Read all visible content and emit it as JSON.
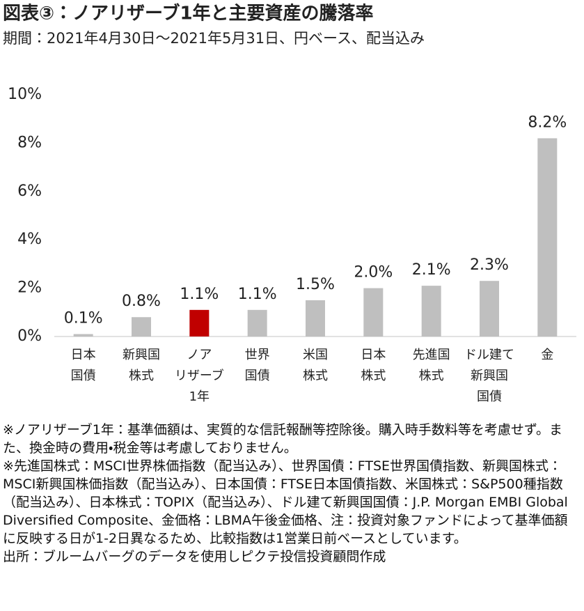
{
  "chart_data": {
    "type": "bar",
    "title": "図表③：ノアリザーブ1年と主要資産の騰落率",
    "subtitle": "期間：2021年4月30日～2021年5月31日、円ベース、配当込み",
    "categories": [
      [
        "日本",
        "国債"
      ],
      [
        "新興国",
        "株式"
      ],
      [
        "ノア",
        "リザーブ",
        "1年"
      ],
      [
        "世界",
        "国債"
      ],
      [
        "米国",
        "株式"
      ],
      [
        "日本",
        "株式"
      ],
      [
        "先進国",
        "株式"
      ],
      [
        "ドル建て",
        "新興国",
        "国債"
      ],
      [
        "金"
      ]
    ],
    "values": [
      0.1,
      0.8,
      1.1,
      1.1,
      1.5,
      2.0,
      2.1,
      2.3,
      8.2
    ],
    "value_labels": [
      "0.1%",
      "0.8%",
      "1.1%",
      "1.1%",
      "1.5%",
      "2.0%",
      "2.1%",
      "2.3%",
      "8.2%"
    ],
    "colors": [
      "#bfbfbf",
      "#bfbfbf",
      "#c00000",
      "#bfbfbf",
      "#bfbfbf",
      "#bfbfbf",
      "#bfbfbf",
      "#bfbfbf",
      "#bfbfbf"
    ],
    "ylim": [
      0,
      10
    ],
    "yticks": [
      {
        "value": 0,
        "label": "0%"
      },
      {
        "value": 2,
        "label": "2%"
      },
      {
        "value": 4,
        "label": "4%"
      },
      {
        "value": 6,
        "label": "6%"
      },
      {
        "value": 8,
        "label": "8%"
      },
      {
        "value": 10,
        "label": "10%"
      }
    ],
    "grid": false,
    "notes": [
      "※ノアリザーブ1年：基準価額は、実質的な信託報酬等控除後。購入時手数料等を考慮せず。また、換金時の費用・税金等は考慮しておりません。",
      "※先進国株式：MSCI世界株価指数（配当込み）、世界国債：FTSE世界国債指数、新興国株式：MSCI新興国株価指数（配当込み）、日本国債：FTSE日本国債指数、米国株式：S&P500種指数（配当込み）、日本株式：TOPIX（配当込み）、ドル建て新興国国債：J.P. Morgan EMBI Global Diversified Composite、金価格：LBMA午後金価格、注：投資対象ファンドによって基準価額に反映する日が1-2日異なるため、比較指数は1営業日前ベースとしています。",
      "出所：ブルームバーグのデータを使用しピクテ投信投資顧問作成"
    ]
  }
}
